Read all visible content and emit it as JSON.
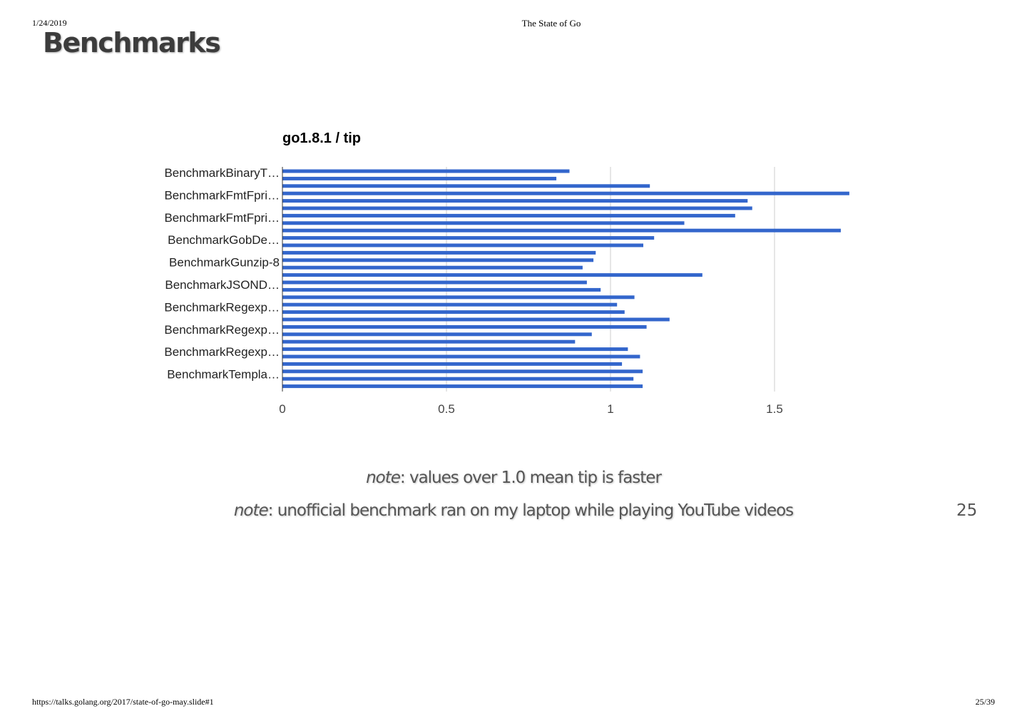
{
  "print_header": {
    "date": "1/24/2019",
    "title": "The State of Go"
  },
  "print_footer": {
    "url": "https://talks.golang.org/2017/state-of-go-may.slide#1",
    "page": "25/39"
  },
  "slide": {
    "title": "Benchmarks",
    "note1_prefix": "note",
    "note1_text": ": values over 1.0 mean tip is faster",
    "note2_prefix": "note",
    "note2_text": ": unofficial benchmark ran on my laptop while playing YouTube videos",
    "number": "25"
  },
  "chart_data": {
    "type": "bar",
    "orientation": "horizontal",
    "title": "go1.8.1 / tip",
    "xlabel": "",
    "ylabel": "",
    "xlim": [
      0,
      1.75
    ],
    "xticks": [
      "0",
      "0.5",
      "1",
      "1.5"
    ],
    "xtick_values": [
      0,
      0.5,
      1,
      1.5
    ],
    "grid": true,
    "bar_color": "#3366cc",
    "category_labels": [
      "BenchmarkBinaryT…",
      "BenchmarkFmtFpri…",
      "BenchmarkFmtFpri…",
      "BenchmarkGobDe…",
      "BenchmarkGunzip-8",
      "BenchmarkJSOND…",
      "BenchmarkRegexp…",
      "BenchmarkRegexp…",
      "BenchmarkRegexp…",
      "BenchmarkTempla…"
    ],
    "values": [
      0.875,
      0.835,
      1.12,
      1.728,
      1.418,
      1.432,
      1.38,
      1.225,
      1.702,
      1.133,
      1.1,
      0.955,
      0.948,
      0.915,
      1.28,
      0.928,
      0.97,
      1.073,
      1.02,
      1.043,
      1.18,
      1.11,
      0.943,
      0.892,
      1.053,
      1.09,
      1.035,
      1.098,
      1.07,
      1.098
    ]
  }
}
